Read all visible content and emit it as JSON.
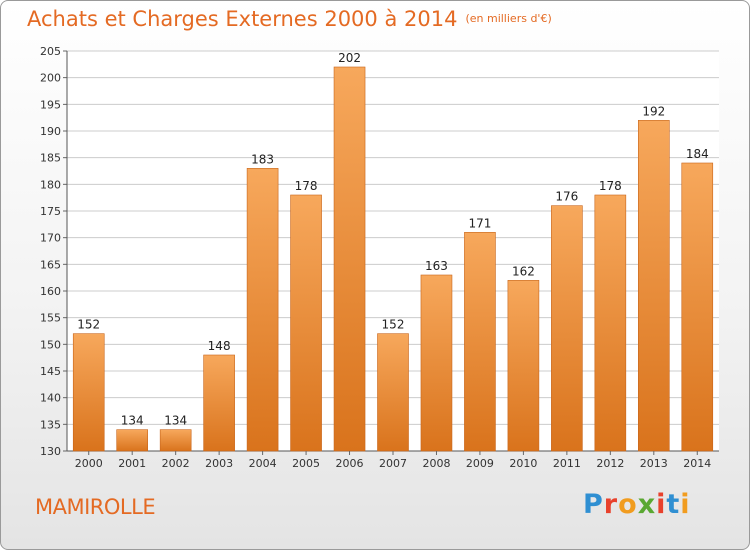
{
  "chart_data": {
    "type": "bar",
    "title": "Achats et Charges Externes 2000 à 2014",
    "subtitle": "(en milliers d'€)",
    "categories": [
      "2000",
      "2001",
      "2002",
      "2003",
      "2004",
      "2005",
      "2006",
      "2007",
      "2008",
      "2009",
      "2010",
      "2011",
      "2012",
      "2013",
      "2014"
    ],
    "values": [
      152,
      134,
      134,
      148,
      183,
      178,
      202,
      152,
      163,
      171,
      162,
      176,
      178,
      192,
      184
    ],
    "xlabel": "",
    "ylabel": "",
    "ylim": [
      130,
      205
    ],
    "yticks": [
      130,
      135,
      140,
      145,
      150,
      155,
      160,
      165,
      170,
      175,
      180,
      185,
      190,
      195,
      200,
      205
    ],
    "grid": true,
    "legend": "none",
    "bar_color_top": "#f7a85c",
    "bar_color_bottom": "#d9731c"
  },
  "footer": {
    "location": "MAMIROLLE",
    "logo_text": "Proxiti"
  },
  "colors": {
    "accent": "#e46a23",
    "logo_letters": [
      "#2f8fd2",
      "#e8412c",
      "#f19c1f",
      "#5aa832",
      "#e8412c",
      "#2f8fd2",
      "#f19c1f"
    ]
  }
}
